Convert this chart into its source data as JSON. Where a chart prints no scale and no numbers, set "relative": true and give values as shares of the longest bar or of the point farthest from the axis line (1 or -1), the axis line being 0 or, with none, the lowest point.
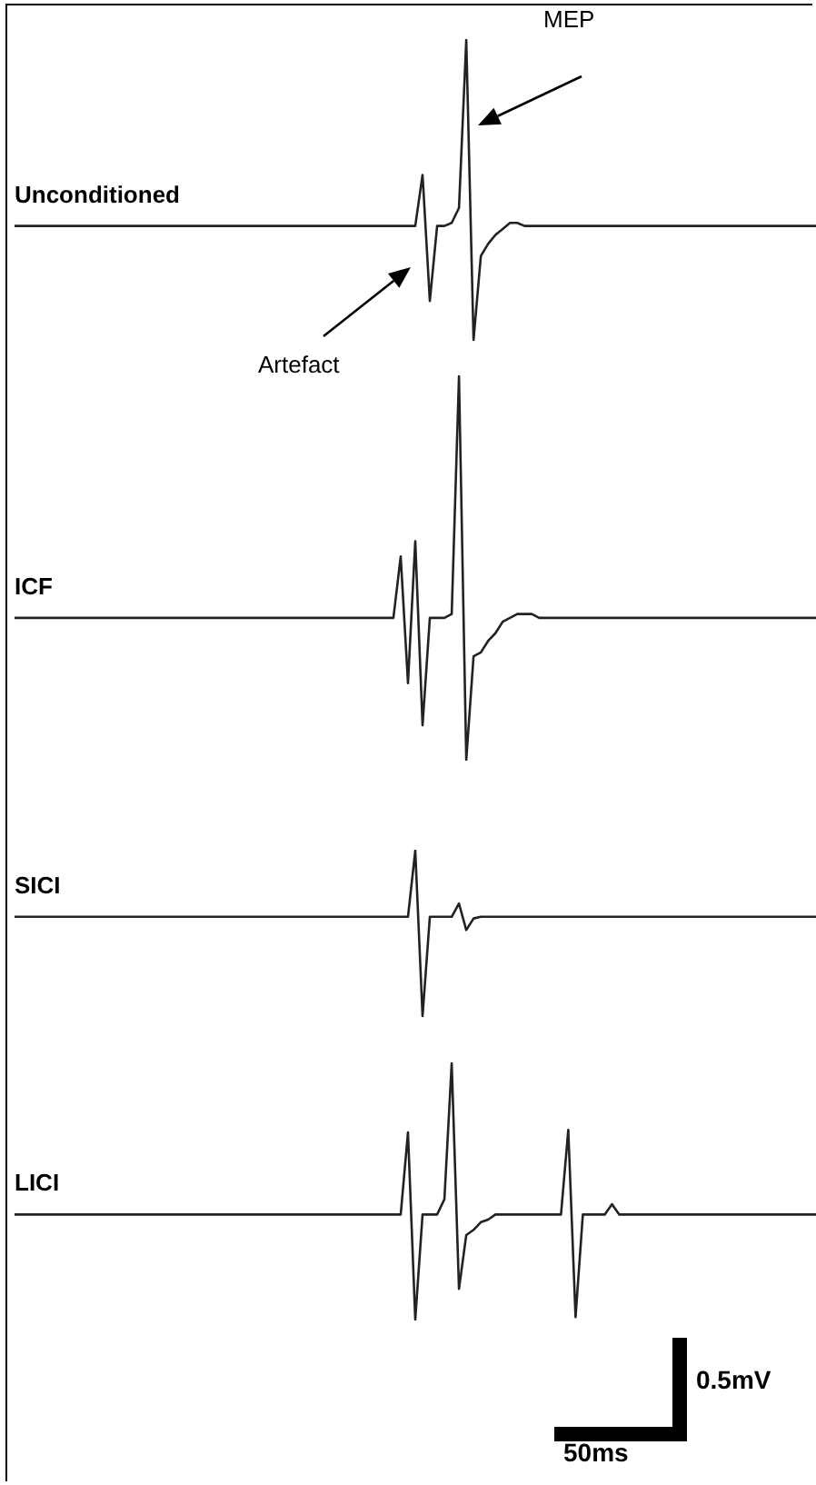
{
  "chart_data": [
    {
      "type": "line",
      "relative": true,
      "tick_labels": false,
      "marker": "none",
      "annotations": [
        "MEP",
        "Artefact"
      ],
      "categories": [
        null,
        null,
        null,
        null,
        null,
        null,
        null,
        null,
        null,
        null,
        null,
        null,
        null,
        null,
        null,
        null,
        null,
        null,
        null,
        null,
        null,
        null,
        null,
        null,
        null,
        null,
        null,
        null,
        null,
        null,
        null,
        null,
        null,
        null,
        null,
        null,
        null,
        null,
        null,
        null,
        null,
        null,
        null,
        null,
        null,
        null,
        null,
        null,
        null,
        null,
        null,
        null,
        null,
        null,
        null,
        null,
        null,
        null,
        null,
        null,
        null,
        null,
        null,
        null,
        null,
        null,
        null,
        null,
        null,
        null,
        null,
        null,
        null,
        null,
        null,
        null,
        null,
        null,
        null,
        null,
        null,
        null,
        null,
        null,
        null,
        null,
        null,
        null,
        null,
        null,
        null,
        null,
        null,
        null,
        null,
        null,
        null,
        null,
        null,
        null,
        null,
        null,
        null,
        null,
        null,
        null,
        null,
        null,
        null,
        null,
        null
      ],
      "series": [
        {
          "name": "Unconditioned",
          "color": "#222222",
          "values": [
            0.38,
            0.38,
            0.38,
            0.38,
            0.38,
            0.38,
            0.38,
            0.38,
            0.38,
            0.38,
            0.38,
            0.38,
            0.38,
            0.38,
            0.38,
            0.38,
            0.38,
            0.38,
            0.38,
            0.38,
            0.38,
            0.38,
            0.38,
            0.38,
            0.38,
            0.38,
            0.38,
            0.38,
            0.38,
            0.38,
            0.38,
            0.38,
            0.38,
            0.38,
            0.38,
            0.38,
            0.38,
            0.38,
            0.38,
            0.38,
            0.38,
            0.38,
            0.38,
            0.38,
            0.38,
            0.38,
            0.38,
            0.38,
            0.38,
            0.38,
            0.38,
            0.38,
            0.38,
            0.38,
            0.38,
            0.38,
            0.55,
            0.13,
            0.38,
            0.38,
            0.39,
            0.44,
            1,
            0,
            0.28,
            0.32,
            0.35,
            0.37,
            0.39,
            0.39,
            0.38,
            0.38,
            0.38,
            0.38,
            0.38,
            0.38,
            0.38,
            0.38,
            0.38,
            0.38,
            0.38,
            0.38,
            0.38,
            0.38,
            0.38,
            0.38,
            0.38,
            0.38,
            0.38,
            0.38,
            0.38,
            0.38,
            0.38,
            0.38,
            0.38,
            0.38,
            0.38,
            0.38,
            0.38,
            0.38,
            0.38,
            0.38,
            0.38,
            0.38,
            0.38,
            0.38,
            0.38,
            0.38,
            0.38,
            0.38,
            0.38
          ]
        }
      ]
    },
    {
      "type": "line",
      "relative": true,
      "tick_labels": false,
      "marker": "none",
      "categories": [
        null,
        null,
        null,
        null,
        null,
        null,
        null,
        null,
        null,
        null,
        null,
        null,
        null,
        null,
        null,
        null,
        null,
        null,
        null,
        null,
        null,
        null,
        null,
        null,
        null,
        null,
        null,
        null,
        null,
        null,
        null,
        null,
        null,
        null,
        null,
        null,
        null,
        null,
        null,
        null,
        null,
        null,
        null,
        null,
        null,
        null,
        null,
        null,
        null,
        null,
        null,
        null,
        null,
        null,
        null,
        null,
        null,
        null,
        null,
        null,
        null,
        null,
        null,
        null,
        null,
        null,
        null,
        null,
        null,
        null,
        null,
        null,
        null,
        null,
        null,
        null,
        null,
        null,
        null,
        null,
        null,
        null,
        null,
        null,
        null,
        null,
        null,
        null,
        null,
        null,
        null,
        null,
        null,
        null,
        null,
        null,
        null,
        null,
        null,
        null,
        null,
        null,
        null,
        null,
        null,
        null,
        null,
        null,
        null,
        null,
        null
      ],
      "series": [
        {
          "name": "ICF",
          "color": "#222222",
          "values": [
            0.37,
            0.37,
            0.37,
            0.37,
            0.37,
            0.37,
            0.37,
            0.37,
            0.37,
            0.37,
            0.37,
            0.37,
            0.37,
            0.37,
            0.37,
            0.37,
            0.37,
            0.37,
            0.37,
            0.37,
            0.37,
            0.37,
            0.37,
            0.37,
            0.37,
            0.37,
            0.37,
            0.37,
            0.37,
            0.37,
            0.37,
            0.37,
            0.37,
            0.37,
            0.37,
            0.37,
            0.37,
            0.37,
            0.37,
            0.37,
            0.37,
            0.37,
            0.37,
            0.37,
            0.37,
            0.37,
            0.37,
            0.37,
            0.37,
            0.37,
            0.37,
            0.37,
            0.37,
            0.53,
            0.2,
            0.57,
            0.09,
            0.37,
            0.37,
            0.37,
            0.38,
            1,
            0,
            0.27,
            0.28,
            0.31,
            0.33,
            0.36,
            0.37,
            0.38,
            0.38,
            0.38,
            0.37,
            0.37,
            0.37,
            0.37,
            0.37,
            0.37,
            0.37,
            0.37,
            0.37,
            0.37,
            0.37,
            0.37,
            0.37,
            0.37,
            0.37,
            0.37,
            0.37,
            0.37,
            0.37,
            0.37,
            0.37,
            0.37,
            0.37,
            0.37,
            0.37,
            0.37,
            0.37,
            0.37,
            0.37,
            0.37,
            0.37,
            0.37,
            0.37,
            0.37,
            0.37,
            0.37,
            0.37,
            0.37,
            0.37
          ]
        }
      ]
    },
    {
      "type": "line",
      "relative": true,
      "tick_labels": false,
      "marker": "none",
      "categories": [
        null,
        null,
        null,
        null,
        null,
        null,
        null,
        null,
        null,
        null,
        null,
        null,
        null,
        null,
        null,
        null,
        null,
        null,
        null,
        null,
        null,
        null,
        null,
        null,
        null,
        null,
        null,
        null,
        null,
        null,
        null,
        null,
        null,
        null,
        null,
        null,
        null,
        null,
        null,
        null,
        null,
        null,
        null,
        null,
        null,
        null,
        null,
        null,
        null,
        null,
        null,
        null,
        null,
        null,
        null,
        null,
        null,
        null,
        null,
        null,
        null,
        null,
        null,
        null,
        null,
        null,
        null,
        null,
        null,
        null,
        null,
        null,
        null,
        null,
        null,
        null,
        null,
        null,
        null,
        null,
        null,
        null,
        null,
        null,
        null,
        null,
        null,
        null,
        null,
        null,
        null,
        null,
        null,
        null,
        null,
        null,
        null,
        null,
        null,
        null,
        null,
        null,
        null,
        null,
        null,
        null,
        null,
        null,
        null,
        null,
        null
      ],
      "series": [
        {
          "name": "SICI",
          "color": "#222222",
          "values": [
            0.6,
            0.6,
            0.6,
            0.6,
            0.6,
            0.6,
            0.6,
            0.6,
            0.6,
            0.6,
            0.6,
            0.6,
            0.6,
            0.6,
            0.6,
            0.6,
            0.6,
            0.6,
            0.6,
            0.6,
            0.6,
            0.6,
            0.6,
            0.6,
            0.6,
            0.6,
            0.6,
            0.6,
            0.6,
            0.6,
            0.6,
            0.6,
            0.6,
            0.6,
            0.6,
            0.6,
            0.6,
            0.6,
            0.6,
            0.6,
            0.6,
            0.6,
            0.6,
            0.6,
            0.6,
            0.6,
            0.6,
            0.6,
            0.6,
            0.6,
            0.6,
            0.6,
            0.6,
            0.6,
            0.6,
            1,
            0,
            0.6,
            0.6,
            0.6,
            0.6,
            0.68,
            0.52,
            0.59,
            0.6,
            0.6,
            0.6,
            0.6,
            0.6,
            0.6,
            0.6,
            0.6,
            0.6,
            0.6,
            0.6,
            0.6,
            0.6,
            0.6,
            0.6,
            0.6,
            0.6,
            0.6,
            0.6,
            0.6,
            0.6,
            0.6,
            0.6,
            0.6,
            0.6,
            0.6,
            0.6,
            0.6,
            0.6,
            0.6,
            0.6,
            0.6,
            0.6,
            0.6,
            0.6,
            0.6,
            0.6,
            0.6,
            0.6,
            0.6,
            0.6,
            0.6,
            0.6,
            0.6,
            0.6,
            0.6,
            0.6
          ]
        }
      ]
    },
    {
      "type": "line",
      "relative": true,
      "tick_labels": false,
      "marker": "none",
      "annotations": [
        "0.5mV",
        "50ms"
      ],
      "categories": [
        null,
        null,
        null,
        null,
        null,
        null,
        null,
        null,
        null,
        null,
        null,
        null,
        null,
        null,
        null,
        null,
        null,
        null,
        null,
        null,
        null,
        null,
        null,
        null,
        null,
        null,
        null,
        null,
        null,
        null,
        null,
        null,
        null,
        null,
        null,
        null,
        null,
        null,
        null,
        null,
        null,
        null,
        null,
        null,
        null,
        null,
        null,
        null,
        null,
        null,
        null,
        null,
        null,
        null,
        null,
        null,
        null,
        null,
        null,
        null,
        null,
        null,
        null,
        null,
        null,
        null,
        null,
        null,
        null,
        null,
        null,
        null,
        null,
        null,
        null,
        null,
        null,
        null,
        null,
        null,
        null,
        null,
        null,
        null,
        null,
        null,
        null,
        null,
        null,
        null,
        null,
        null,
        null,
        null,
        null,
        null,
        null,
        null,
        null,
        null,
        null,
        null,
        null,
        null,
        null,
        null,
        null,
        null,
        null,
        null,
        null
      ],
      "series": [
        {
          "name": "LICI",
          "color": "#222222",
          "values": [
            0.41,
            0.41,
            0.41,
            0.41,
            0.41,
            0.41,
            0.41,
            0.41,
            0.41,
            0.41,
            0.41,
            0.41,
            0.41,
            0.41,
            0.41,
            0.41,
            0.41,
            0.41,
            0.41,
            0.41,
            0.41,
            0.41,
            0.41,
            0.41,
            0.41,
            0.41,
            0.41,
            0.41,
            0.41,
            0.41,
            0.41,
            0.41,
            0.41,
            0.41,
            0.41,
            0.41,
            0.41,
            0.41,
            0.41,
            0.41,
            0.41,
            0.41,
            0.41,
            0.41,
            0.41,
            0.41,
            0.41,
            0.41,
            0.41,
            0.41,
            0.41,
            0.41,
            0.41,
            0.41,
            0.73,
            0,
            0.41,
            0.41,
            0.41,
            0.47,
            1,
            0.12,
            0.33,
            0.35,
            0.38,
            0.39,
            0.41,
            0.41,
            0.41,
            0.41,
            0.41,
            0.41,
            0.41,
            0.41,
            0.41,
            0.41,
            0.74,
            0.01,
            0.41,
            0.41,
            0.41,
            0.41,
            0.45,
            0.41,
            0.41,
            0.41,
            0.41,
            0.41,
            0.41,
            0.41,
            0.41,
            0.41,
            0.41,
            0.41,
            0.41,
            0.41,
            0.41,
            0.41,
            0.41,
            0.41,
            0.41,
            0.41,
            0.41,
            0.41,
            0.41,
            0.41,
            0.41,
            0.41,
            0.41,
            0.41,
            0.41
          ]
        }
      ]
    }
  ]
}
